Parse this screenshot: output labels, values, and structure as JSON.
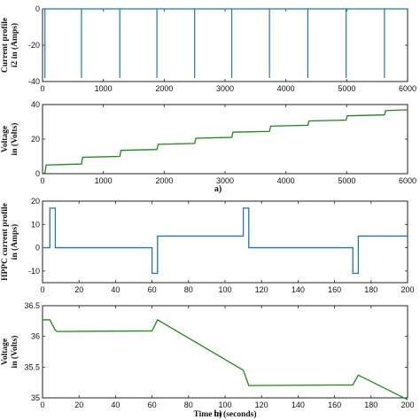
{
  "chart_data": [
    {
      "type": "line",
      "ylabel": [
        "Current profile",
        "i2 in (Amps)"
      ],
      "xlabel": "",
      "xlim": [
        0,
        6000
      ],
      "ylim": [
        -40,
        0
      ],
      "xticks": [
        0,
        1000,
        2000,
        3000,
        4000,
        5000,
        6000
      ],
      "yticks": [
        -40,
        -20,
        0
      ],
      "color": "#1f77b4",
      "series": [
        {
          "baseline": 0,
          "pulse_value": -38,
          "pulse_times": [
            40,
            640,
            1270,
            1880,
            2500,
            3110,
            3730,
            4360,
            4990,
            5620
          ]
        }
      ]
    },
    {
      "type": "line",
      "ylabel": [
        "Voltage",
        "in (Volts)"
      ],
      "xlabel": "",
      "caption": "a)",
      "xlim": [
        0,
        6000
      ],
      "ylim": [
        0,
        40
      ],
      "xticks": [
        0,
        1000,
        2000,
        3000,
        4000,
        5000,
        6000
      ],
      "yticks": [
        0,
        20,
        40
      ],
      "color": "#1a8a1a",
      "series": [
        {
          "x": [
            0,
            40,
            60,
            640,
            660,
            1270,
            1290,
            1880,
            1900,
            2500,
            2520,
            3110,
            3130,
            3730,
            3750,
            4360,
            4380,
            4990,
            5010,
            5620,
            5640,
            6000
          ],
          "y": [
            0,
            0.5,
            5,
            5.6,
            9.5,
            10,
            13.5,
            14,
            17,
            17.5,
            20.5,
            21,
            24,
            24.5,
            27.5,
            28,
            30.5,
            31,
            33.5,
            34,
            36.5,
            37
          ]
        }
      ]
    },
    {
      "type": "line",
      "ylabel": [
        "HPPC current profile",
        "in (Amps)"
      ],
      "xlabel": "",
      "xlim": [
        0,
        200
      ],
      "ylim": [
        -15,
        20
      ],
      "xticks": [
        0,
        20,
        40,
        60,
        80,
        100,
        120,
        140,
        160,
        180,
        200
      ],
      "yticks": [
        -10,
        0,
        10,
        20
      ],
      "color": "#1f77b4",
      "series": [
        {
          "x": [
            0,
            4,
            4,
            7,
            7,
            60,
            60,
            63,
            63,
            110,
            110,
            113,
            113,
            170,
            170,
            173,
            173,
            200
          ],
          "y": [
            0,
            0,
            17,
            17,
            0,
            0,
            -11,
            -11,
            5,
            5,
            17,
            17,
            0,
            0,
            -11,
            -11,
            5,
            5
          ]
        }
      ]
    },
    {
      "type": "line",
      "ylabel": [
        "Voltage",
        "in (Volts)"
      ],
      "xlabel": "Time in (seconds)",
      "caption": "b)",
      "xlim": [
        0,
        200
      ],
      "ylim": [
        35,
        36.5
      ],
      "xticks": [
        0,
        20,
        40,
        60,
        80,
        100,
        120,
        140,
        160,
        180,
        200
      ],
      "yticks": [
        35,
        35.5,
        36,
        36.5
      ],
      "color": "#1a8a1a",
      "series": [
        {
          "x": [
            0,
            4,
            7,
            8,
            60,
            63,
            110,
            113,
            114,
            170,
            173,
            200
          ],
          "y": [
            36.27,
            36.27,
            36.1,
            36.08,
            36.09,
            36.27,
            35.45,
            35.2,
            35.2,
            35.21,
            35.37,
            34.97
          ]
        }
      ]
    }
  ]
}
